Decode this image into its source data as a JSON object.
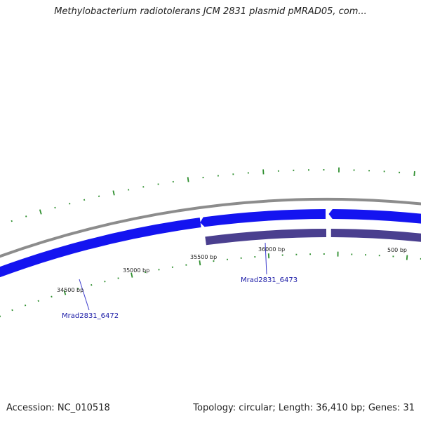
{
  "title": "Methylobacterium radiotolerans JCM 2831 plasmid pMRAD05, com...",
  "footer": {
    "accession": "Accession: NC_010518",
    "summary": "Topology: circular; Length: 36,410 bp; Genes: 31"
  },
  "map": {
    "sequence_length_bp": 36410,
    "colors": {
      "backbone": "#8c8c8c",
      "forward_gene": "#1414f0",
      "reverse_gene": "#4a3f8f",
      "tick": "#2f8f2f",
      "gene_label": "#1a1aa6",
      "leader_line": "#3a3acc"
    },
    "ticks": [
      {
        "label": "34500 bp"
      },
      {
        "label": "35000 bp"
      },
      {
        "label": "35500 bp"
      },
      {
        "label": "36000 bp"
      },
      {
        "label": "500 bp"
      }
    ],
    "genes": [
      {
        "label": "Mrad2831_6472"
      },
      {
        "label": "Mrad2831_6473"
      }
    ]
  }
}
